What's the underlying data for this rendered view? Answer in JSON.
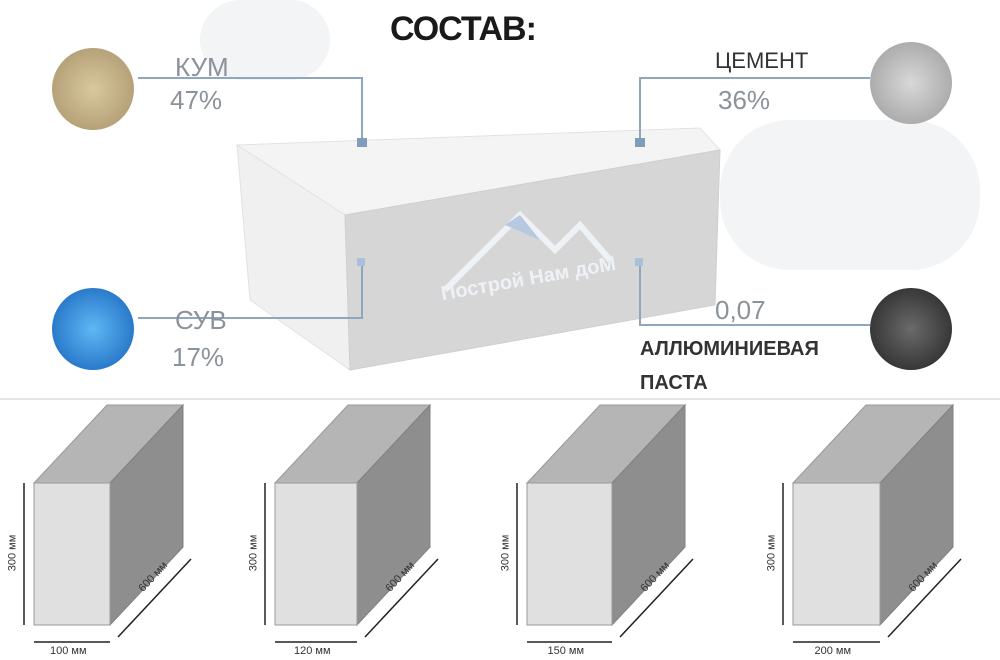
{
  "title": "СОСТАВ:",
  "components": [
    {
      "name": "КУМ",
      "value": "47%",
      "icon": "sand-circle",
      "color": "#c8b48a"
    },
    {
      "name": "ЦЕМЕНТ",
      "value": "36%",
      "icon": "cement-circle",
      "color": "#b8b8b8"
    },
    {
      "name": "СУВ",
      "value": "17%",
      "icon": "water-circle",
      "color": "#2a7ed0"
    },
    {
      "name": "АЛЛЮМИНИЕВАЯ ПАСТА",
      "name_line1": "АЛЛЮМИНИЕВАЯ",
      "name_line2": "ПАСТА",
      "value": "0,07",
      "icon": "aluminium-paste-circle",
      "color": "#3a3a3a"
    }
  ],
  "logo_text": "Построй Нам доМ",
  "blocks": [
    {
      "height": "300 мм",
      "length": "600 мм",
      "width": "100 мм"
    },
    {
      "height": "300 мм",
      "length": "600 мм",
      "width": "120 мм"
    },
    {
      "height": "300 мм",
      "length": "600 мм",
      "width": "150 мм"
    },
    {
      "height": "300 мм",
      "length": "600 мм",
      "width": "200 мм"
    }
  ]
}
